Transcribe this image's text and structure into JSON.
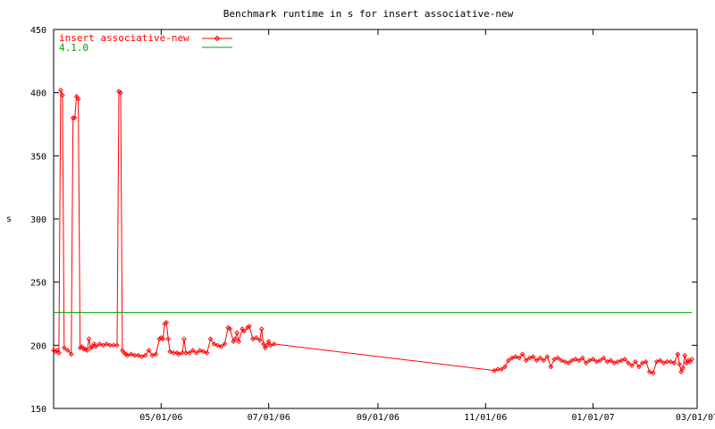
{
  "chart_data": {
    "type": "line",
    "title": "Benchmark runtime in s for insert associative-new",
    "ylabel": "s",
    "xlabel": "",
    "ylim": [
      150,
      450
    ],
    "xlim": [
      "2006-03-01",
      "2007-03-01"
    ],
    "yticks": [
      "150",
      "200",
      "250",
      "300",
      "350",
      "400",
      "450"
    ],
    "xticks": [
      {
        "date": "2006-05-01",
        "label": "05/01/06"
      },
      {
        "date": "2006-07-01",
        "label": "07/01/06"
      },
      {
        "date": "2006-09-01",
        "label": "09/01/06"
      },
      {
        "date": "2006-11-01",
        "label": "11/01/06"
      },
      {
        "date": "2007-01-01",
        "label": "01/01/07"
      },
      {
        "date": "2007-03-01",
        "label": "03/01/07"
      }
    ],
    "grid": false,
    "legend_position": "top-left",
    "series": [
      {
        "name": "insert associative-new",
        "color": "#ff0000",
        "marker": "diamond",
        "points": [
          [
            "2006-03-01",
            196
          ],
          [
            "2006-03-02",
            195
          ],
          [
            "2006-03-03",
            196
          ],
          [
            "2006-03-04",
            194
          ],
          [
            "2006-03-05",
            402
          ],
          [
            "2006-03-06",
            398
          ],
          [
            "2006-03-07",
            198
          ],
          [
            "2006-03-09",
            196
          ],
          [
            "2006-03-11",
            193
          ],
          [
            "2006-03-12",
            380
          ],
          [
            "2006-03-13",
            380
          ],
          [
            "2006-03-14",
            397
          ],
          [
            "2006-03-15",
            395
          ],
          [
            "2006-03-16",
            198
          ],
          [
            "2006-03-17",
            199
          ],
          [
            "2006-03-18",
            197
          ],
          [
            "2006-03-19",
            197
          ],
          [
            "2006-03-20",
            196
          ],
          [
            "2006-03-21",
            205
          ],
          [
            "2006-03-22",
            198
          ],
          [
            "2006-03-23",
            199
          ],
          [
            "2006-03-24",
            201
          ],
          [
            "2006-03-25",
            199
          ],
          [
            "2006-03-27",
            201
          ],
          [
            "2006-03-29",
            200
          ],
          [
            "2006-03-31",
            201
          ],
          [
            "2006-04-02",
            200
          ],
          [
            "2006-04-04",
            200
          ],
          [
            "2006-04-06",
            200
          ],
          [
            "2006-04-07",
            401
          ],
          [
            "2006-04-08",
            400
          ],
          [
            "2006-04-09",
            196
          ],
          [
            "2006-04-10",
            194
          ],
          [
            "2006-04-11",
            193
          ],
          [
            "2006-04-12",
            192
          ],
          [
            "2006-04-14",
            193
          ],
          [
            "2006-04-16",
            192
          ],
          [
            "2006-04-18",
            192
          ],
          [
            "2006-04-20",
            191
          ],
          [
            "2006-04-22",
            192
          ],
          [
            "2006-04-24",
            196
          ],
          [
            "2006-04-26",
            192
          ],
          [
            "2006-04-28",
            193
          ],
          [
            "2006-04-30",
            205
          ],
          [
            "2006-05-01",
            206
          ],
          [
            "2006-05-02",
            205
          ],
          [
            "2006-05-03",
            217
          ],
          [
            "2006-05-04",
            218
          ],
          [
            "2006-05-05",
            205
          ],
          [
            "2006-05-06",
            195
          ],
          [
            "2006-05-08",
            194
          ],
          [
            "2006-05-10",
            194
          ],
          [
            "2006-05-11",
            193
          ],
          [
            "2006-05-13",
            194
          ],
          [
            "2006-05-14",
            205
          ],
          [
            "2006-05-15",
            194
          ],
          [
            "2006-05-17",
            194
          ],
          [
            "2006-05-19",
            196
          ],
          [
            "2006-05-21",
            194
          ],
          [
            "2006-05-23",
            196
          ],
          [
            "2006-05-25",
            195
          ],
          [
            "2006-05-27",
            194
          ],
          [
            "2006-05-29",
            205
          ],
          [
            "2006-05-31",
            201
          ],
          [
            "2006-06-02",
            200
          ],
          [
            "2006-06-04",
            199
          ],
          [
            "2006-06-06",
            201
          ],
          [
            "2006-06-08",
            214
          ],
          [
            "2006-06-09",
            213
          ],
          [
            "2006-06-11",
            203
          ],
          [
            "2006-06-12",
            205
          ],
          [
            "2006-06-13",
            210
          ],
          [
            "2006-06-14",
            203
          ],
          [
            "2006-06-16",
            213
          ],
          [
            "2006-06-17",
            211
          ],
          [
            "2006-06-19",
            214
          ],
          [
            "2006-06-20",
            215
          ],
          [
            "2006-06-22",
            205
          ],
          [
            "2006-06-24",
            206
          ],
          [
            "2006-06-26",
            204
          ],
          [
            "2006-06-27",
            213
          ],
          [
            "2006-06-28",
            201
          ],
          [
            "2006-06-29",
            198
          ],
          [
            "2006-06-30",
            200
          ],
          [
            "2006-07-01",
            203
          ],
          [
            "2006-07-02",
            200
          ],
          [
            "2006-07-04",
            201
          ],
          [
            "2006-11-06",
            180
          ],
          [
            "2006-11-08",
            181
          ],
          [
            "2006-11-10",
            181
          ],
          [
            "2006-11-12",
            183
          ],
          [
            "2006-11-14",
            188
          ],
          [
            "2006-11-16",
            190
          ],
          [
            "2006-11-18",
            191
          ],
          [
            "2006-11-20",
            190
          ],
          [
            "2006-11-22",
            193
          ],
          [
            "2006-11-24",
            188
          ],
          [
            "2006-11-26",
            190
          ],
          [
            "2006-11-28",
            191
          ],
          [
            "2006-11-30",
            188
          ],
          [
            "2006-12-02",
            190
          ],
          [
            "2006-12-04",
            188
          ],
          [
            "2006-12-06",
            191
          ],
          [
            "2006-12-08",
            183
          ],
          [
            "2006-12-10",
            189
          ],
          [
            "2006-12-12",
            190
          ],
          [
            "2006-12-14",
            188
          ],
          [
            "2006-12-16",
            187
          ],
          [
            "2006-12-18",
            186
          ],
          [
            "2006-12-20",
            188
          ],
          [
            "2006-12-22",
            189
          ],
          [
            "2006-12-24",
            188
          ],
          [
            "2006-12-26",
            190
          ],
          [
            "2006-12-28",
            186
          ],
          [
            "2006-12-30",
            188
          ],
          [
            "2007-01-01",
            189
          ],
          [
            "2007-01-03",
            187
          ],
          [
            "2007-01-05",
            188
          ],
          [
            "2007-01-07",
            190
          ],
          [
            "2007-01-09",
            187
          ],
          [
            "2007-01-11",
            188
          ],
          [
            "2007-01-13",
            186
          ],
          [
            "2007-01-15",
            187
          ],
          [
            "2007-01-17",
            188
          ],
          [
            "2007-01-19",
            189
          ],
          [
            "2007-01-21",
            186
          ],
          [
            "2007-01-23",
            184
          ],
          [
            "2007-01-25",
            187
          ],
          [
            "2007-01-27",
            183
          ],
          [
            "2007-01-29",
            186
          ],
          [
            "2007-01-31",
            187
          ],
          [
            "2007-02-02",
            179
          ],
          [
            "2007-02-04",
            178
          ],
          [
            "2007-02-06",
            187
          ],
          [
            "2007-02-08",
            188
          ],
          [
            "2007-02-10",
            186
          ],
          [
            "2007-02-12",
            187
          ],
          [
            "2007-02-14",
            187
          ],
          [
            "2007-02-16",
            186
          ],
          [
            "2007-02-18",
            193
          ],
          [
            "2007-02-19",
            185
          ],
          [
            "2007-02-20",
            179
          ],
          [
            "2007-02-21",
            182
          ],
          [
            "2007-02-22",
            192
          ],
          [
            "2007-02-23",
            186
          ],
          [
            "2007-02-24",
            188
          ],
          [
            "2007-02-25",
            187
          ],
          [
            "2007-02-26",
            189
          ]
        ]
      },
      {
        "name": "4.1.0",
        "color": "#00a000",
        "marker": "none",
        "points": [
          [
            "2006-03-01",
            226
          ],
          [
            "2007-02-26",
            226
          ]
        ]
      }
    ]
  }
}
